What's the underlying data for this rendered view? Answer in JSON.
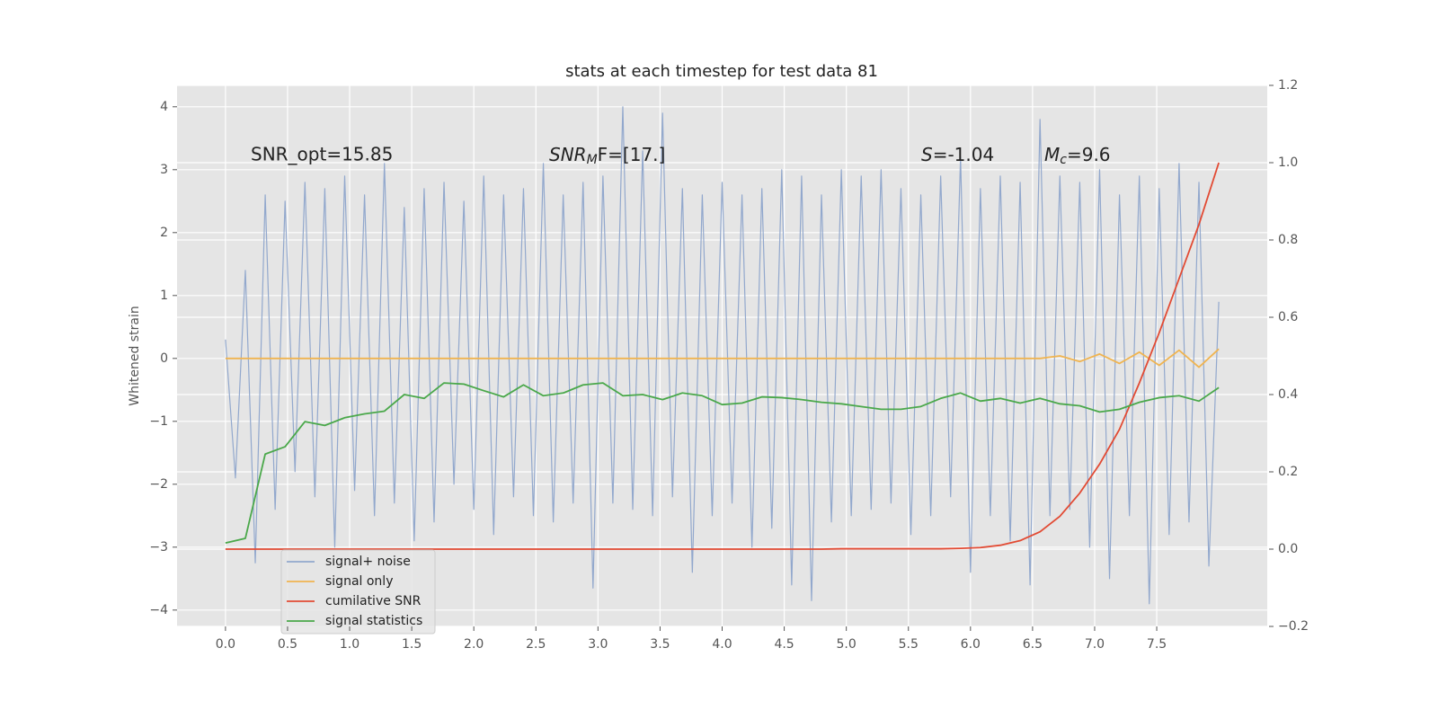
{
  "chart_data": {
    "type": "line",
    "title": "stats at each timestep for test data 81",
    "ylabel": "Whitened strain",
    "annotations": [
      "SNR_opt=15.85",
      {
        "base": "SNR",
        "sub": "M",
        "tail": "F=[17.]"
      },
      {
        "base": "S",
        "tail": "=-1.04"
      },
      {
        "base": "M",
        "sub": "c",
        "tail": "=9.6"
      }
    ],
    "xlim": [
      -0.39,
      8.39
    ],
    "xticks": [
      {
        "value": 0,
        "label": "0.0"
      },
      0.5,
      {
        "value": 1,
        "label": "1.0"
      },
      1.5,
      {
        "value": 2,
        "label": "2.0"
      },
      2.5,
      {
        "value": 3,
        "label": "3.0"
      },
      3.5,
      {
        "value": 4,
        "label": "4.0"
      },
      4.5,
      {
        "value": 5,
        "label": "5.0"
      },
      5.5,
      {
        "value": 6,
        "label": "6.0"
      },
      6.5,
      {
        "value": 7,
        "label": "7.0"
      },
      7.5
    ],
    "ylim": [
      -4.26,
      4.34
    ],
    "yticks": [
      {
        "value": -4,
        "label": "−4"
      },
      {
        "value": -3,
        "label": "−3"
      },
      {
        "value": -2,
        "label": "−2"
      },
      {
        "value": -1,
        "label": "−1"
      },
      0,
      1,
      2,
      3,
      4
    ],
    "y2lim": [
      -0.2,
      1.2
    ],
    "y2ticks": [
      {
        "value": -0.2,
        "label": "−0.2"
      },
      {
        "value": 0,
        "label": "0.0"
      },
      0.2,
      0.4,
      0.6,
      0.8,
      {
        "value": 1,
        "label": "1.0"
      },
      1.2
    ],
    "grid": true,
    "legend": "lower left",
    "x": [
      0,
      0.16,
      0.32,
      0.48,
      0.64,
      0.8,
      0.96,
      1.12,
      1.28,
      1.44,
      1.6,
      1.76,
      1.92,
      2.08,
      2.24,
      2.4,
      2.56,
      2.72,
      2.88,
      3.04,
      3.2,
      3.36,
      3.52,
      3.68,
      3.84,
      4.0,
      4.16,
      4.32,
      4.48,
      4.64,
      4.8,
      4.96,
      5.12,
      5.28,
      5.44,
      5.6,
      5.76,
      5.92,
      6.08,
      6.24,
      6.4,
      6.56,
      6.72,
      6.88,
      7.04,
      7.2,
      7.36,
      7.52,
      7.68,
      7.84,
      8.0
    ],
    "series": [
      {
        "name": "signal+ noise",
        "color": "#92a8cd",
        "x": [
          0,
          0.08,
          0.16,
          0.24,
          0.32,
          0.4,
          0.48,
          0.56,
          0.64,
          0.72,
          0.8,
          0.88,
          0.96,
          1.04,
          1.12,
          1.2,
          1.28,
          1.36,
          1.44,
          1.52,
          1.6,
          1.68,
          1.76,
          1.84,
          1.92,
          2.0,
          2.08,
          2.16,
          2.24,
          2.32,
          2.4,
          2.48,
          2.56,
          2.64,
          2.72,
          2.8,
          2.88,
          2.96,
          3.04,
          3.12,
          3.2,
          3.28,
          3.36,
          3.44,
          3.52,
          3.6,
          3.68,
          3.76,
          3.84,
          3.92,
          4.0,
          4.08,
          4.16,
          4.24,
          4.32,
          4.4,
          4.48,
          4.56,
          4.64,
          4.72,
          4.8,
          4.88,
          4.96,
          5.04,
          5.12,
          5.2,
          5.28,
          5.36,
          5.44,
          5.52,
          5.6,
          5.68,
          5.76,
          5.84,
          5.92,
          6.0,
          6.08,
          6.16,
          6.24,
          6.32,
          6.4,
          6.48,
          6.56,
          6.64,
          6.72,
          6.8,
          6.88,
          6.96,
          7.04,
          7.12,
          7.2,
          7.28,
          7.36,
          7.44,
          7.52,
          7.6,
          7.68,
          7.76,
          7.84,
          7.92,
          8.0
        ],
        "values": [
          0.3,
          -1.9,
          1.4,
          -3.25,
          2.6,
          -2.4,
          2.5,
          -1.8,
          2.8,
          -2.2,
          2.7,
          -3.0,
          2.9,
          -2.1,
          2.6,
          -2.5,
          3.1,
          -2.3,
          2.4,
          -2.9,
          2.7,
          -2.6,
          2.8,
          -2.0,
          2.5,
          -2.4,
          2.9,
          -2.8,
          2.6,
          -2.2,
          2.7,
          -2.5,
          3.1,
          -2.6,
          2.6,
          -2.3,
          2.8,
          -3.65,
          2.9,
          -2.3,
          4.0,
          -2.4,
          3.3,
          -2.5,
          3.9,
          -2.2,
          2.7,
          -3.4,
          2.6,
          -2.5,
          2.8,
          -2.3,
          2.6,
          -3.0,
          2.7,
          -2.7,
          3.0,
          -3.6,
          2.9,
          -3.85,
          2.6,
          -2.6,
          3.0,
          -2.5,
          2.9,
          -2.4,
          3.0,
          -2.3,
          2.7,
          -2.8,
          2.6,
          -2.5,
          2.9,
          -2.2,
          3.2,
          -3.4,
          2.7,
          -2.5,
          2.9,
          -2.9,
          2.8,
          -3.6,
          3.8,
          -2.5,
          2.9,
          -2.4,
          2.8,
          -3.0,
          3.0,
          -3.5,
          2.6,
          -2.5,
          2.9,
          -3.9,
          2.7,
          -2.8,
          3.1,
          -2.6,
          2.8,
          -3.3,
          0.9
        ]
      },
      {
        "name": "signal only",
        "color": "#f0b450",
        "values": [
          0,
          0,
          0,
          0,
          0,
          0,
          0,
          0,
          0,
          0,
          0,
          0,
          0,
          0,
          0,
          0,
          0,
          0,
          0,
          0,
          0,
          0,
          0,
          0,
          0,
          0,
          0,
          0,
          0,
          0,
          0,
          0,
          0,
          0,
          0,
          0,
          0,
          0,
          0,
          0,
          0,
          0,
          0.04,
          -0.05,
          0.07,
          -0.08,
          0.1,
          -0.11,
          0.13,
          -0.14,
          0.15
        ]
      },
      {
        "name": "cumilative SNR",
        "color": "#e24a33",
        "axis": "y2",
        "values": [
          0,
          0,
          0,
          0,
          0,
          0,
          0,
          0,
          0,
          0,
          0,
          0,
          0,
          0,
          0,
          0,
          0,
          0,
          0,
          0,
          0,
          0,
          0,
          0,
          0,
          0,
          0,
          0,
          0,
          0,
          0,
          0.001,
          0.001,
          0.001,
          0.001,
          0.001,
          0.001,
          0.002,
          0.004,
          0.01,
          0.022,
          0.045,
          0.085,
          0.145,
          0.22,
          0.31,
          0.43,
          0.56,
          0.7,
          0.84,
          1.0
        ]
      },
      {
        "name": "signal statistics",
        "color": "#4aa84a",
        "axis": "y2",
        "values": [
          0.016,
          0.028,
          0.246,
          0.265,
          0.33,
          0.32,
          0.34,
          0.35,
          0.357,
          0.4,
          0.39,
          0.43,
          0.427,
          0.41,
          0.394,
          0.425,
          0.397,
          0.404,
          0.425,
          0.43,
          0.397,
          0.4,
          0.387,
          0.404,
          0.397,
          0.374,
          0.378,
          0.394,
          0.392,
          0.387,
          0.38,
          0.376,
          0.369,
          0.362,
          0.362,
          0.369,
          0.39,
          0.404,
          0.383,
          0.39,
          0.378,
          0.39,
          0.376,
          0.371,
          0.355,
          0.362,
          0.38,
          0.392,
          0.397,
          0.383,
          0.418
        ]
      }
    ]
  }
}
